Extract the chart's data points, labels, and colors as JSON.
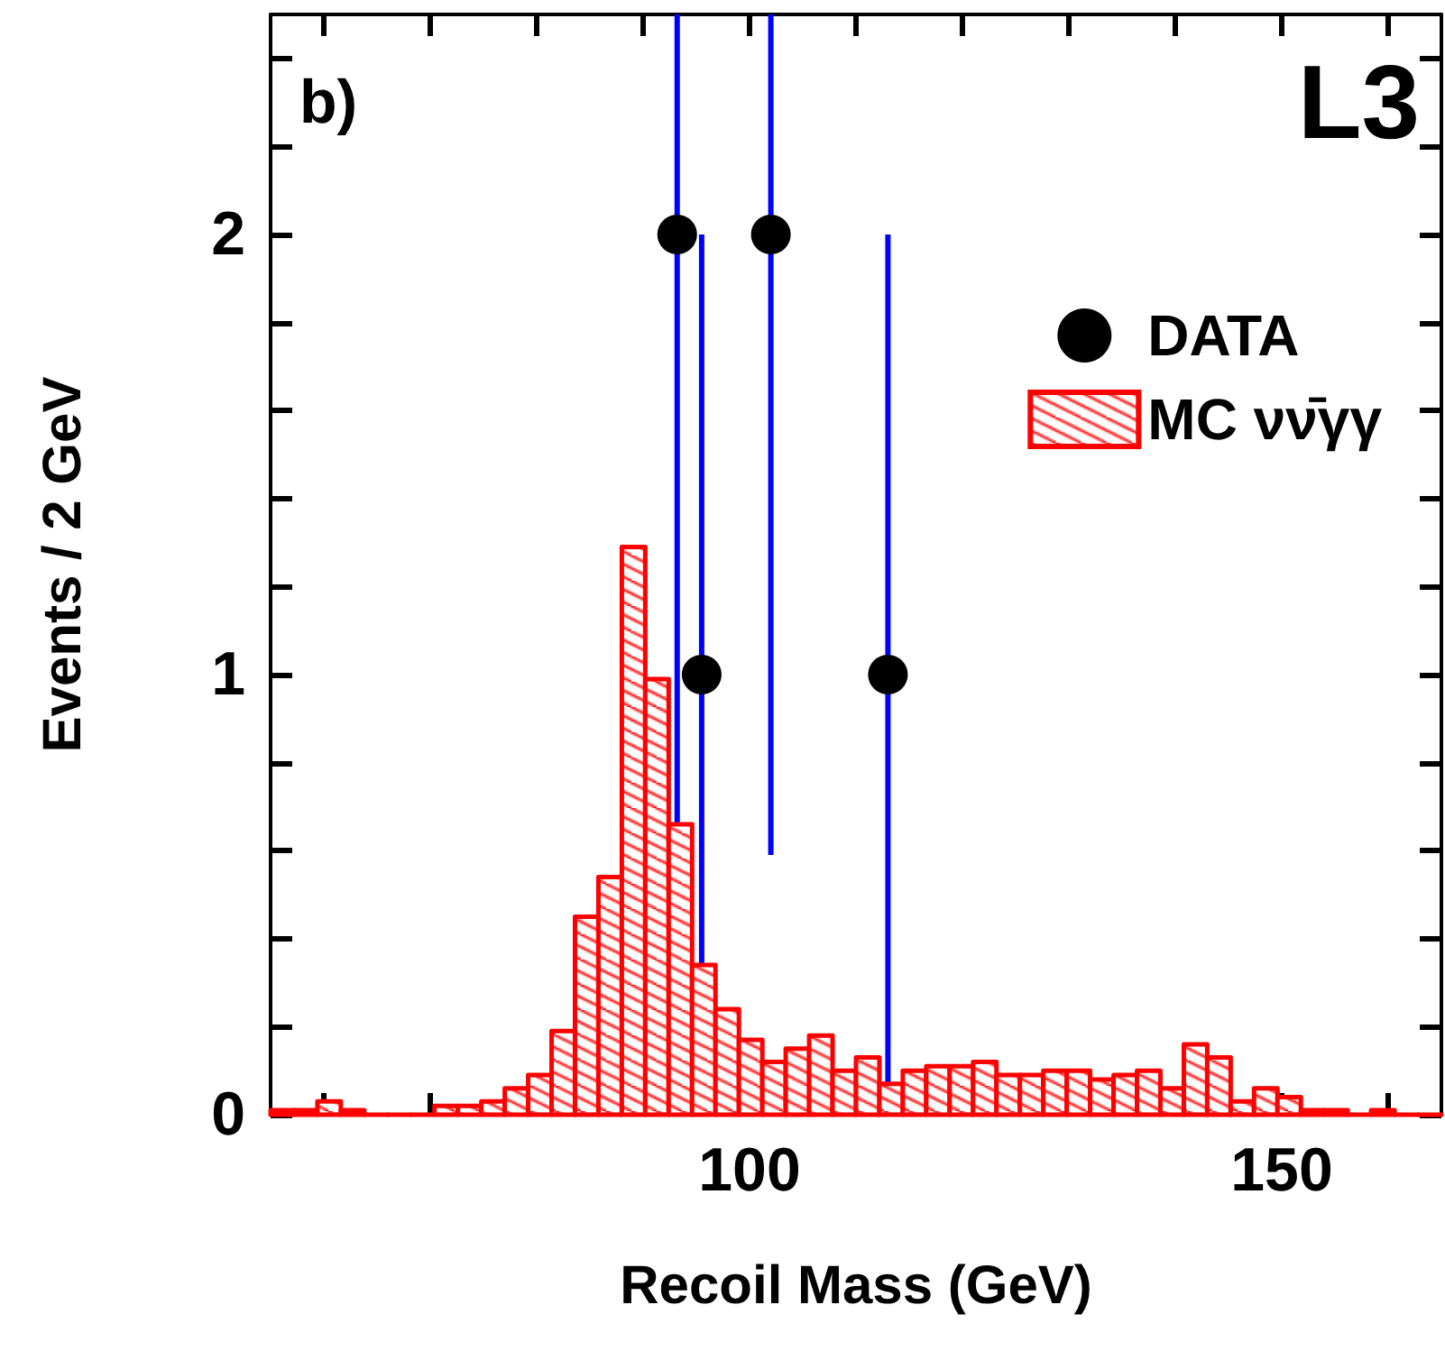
{
  "chart_data": {
    "type": "histogram",
    "xlabel": "Recoil Mass (GeV)",
    "ylabel": "Events / 2 GeV",
    "annotations": [
      "b)",
      "L3"
    ],
    "bins": [
      55,
      57.2,
      59.4,
      61.6,
      63.8,
      66,
      68.2,
      70.4,
      72.6,
      74.8,
      77,
      79.2,
      81.4,
      83.6,
      85.8,
      88,
      90.2,
      92.4,
      94.6,
      96.8,
      99,
      101.2,
      103.4,
      105.6,
      107.8,
      110,
      112.2,
      114.4,
      116.6,
      118.8,
      121,
      123.2,
      125.4,
      127.6,
      129.8,
      132,
      134.2,
      136.4,
      138.6,
      140.8,
      143,
      145.2,
      147.4,
      149.6,
      151.8,
      154,
      156.2,
      158.4,
      160.6,
      162.8,
      165
    ],
    "series": [
      {
        "type": "scatter",
        "name": "DATA",
        "color": "#000000",
        "x": [
          93.2,
          95.5,
          102.0,
          113.0
        ],
        "values": [
          2,
          1,
          2,
          1
        ],
        "errors": [
          [
            0.59,
            2.5
          ],
          [
            0,
            2
          ],
          [
            0.59,
            2.5
          ],
          [
            0,
            2
          ]
        ]
      },
      {
        "name": "MC νν̄γγ",
        "color": "#ff0000",
        "values": [
          0.01,
          0.01,
          0.03,
          0.01,
          0,
          0,
          0,
          0.02,
          0.02,
          0.03,
          0.06,
          0.09,
          0.19,
          0.45,
          0.54,
          1.29,
          0.99,
          0.66,
          0.34,
          0.24,
          0.17,
          0.12,
          0.15,
          0.18,
          0.1,
          0.13,
          0.07,
          0.1,
          0.11,
          0.11,
          0.12,
          0.09,
          0.09,
          0.1,
          0.1,
          0.08,
          0.09,
          0.1,
          0.06,
          0.16,
          0.13,
          0.03,
          0.06,
          0.04,
          0.01,
          0.01,
          0,
          0.01,
          0,
          0
        ]
      }
    ],
    "marker": "circle",
    "legend": "top right",
    "grid": false,
    "xlim": [
      55,
      165
    ],
    "xticks": [
      {
        "value": 60,
        "label": null
      },
      {
        "value": 70,
        "label": null
      },
      {
        "value": 80,
        "label": null
      },
      {
        "value": 90,
        "label": null
      },
      100,
      {
        "value": 110,
        "label": null
      },
      {
        "value": 120,
        "label": null
      },
      {
        "value": 130,
        "label": null
      },
      {
        "value": 140,
        "label": null
      },
      150,
      {
        "value": 160,
        "label": null
      }
    ],
    "ylim": [
      0,
      2.5
    ],
    "yticks": [
      0,
      {
        "value": 0.2,
        "label": null
      },
      {
        "value": 0.4,
        "label": null
      },
      {
        "value": 0.6,
        "label": null
      },
      {
        "value": 0.8,
        "label": null
      },
      1,
      {
        "value": 1.2,
        "label": null
      },
      {
        "value": 1.4,
        "label": null
      },
      {
        "value": 1.6,
        "label": null
      },
      {
        "value": 1.8,
        "label": null
      },
      2,
      {
        "value": 2.2,
        "label": null
      },
      {
        "value": 2.4,
        "label": null
      }
    ]
  }
}
